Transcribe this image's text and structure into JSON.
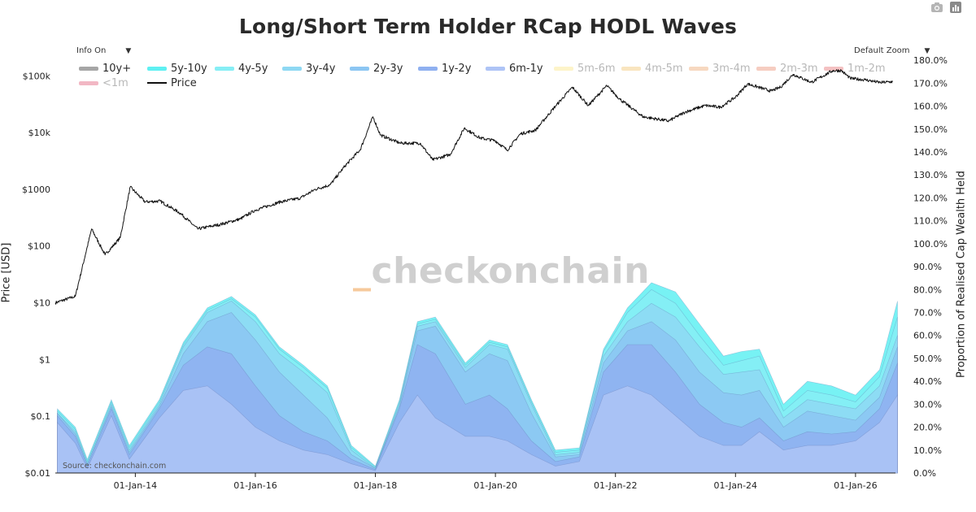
{
  "chart_data": {
    "type": "area",
    "title": "Long/Short Term Holder RCap HODL Waves",
    "xlabel": "",
    "ylabel_left": "Price [USD]",
    "ylabel_right": "Proportion of Realised Cap Wealth Held",
    "x_ticks": [
      "01-Jan-14",
      "01-Jan-16",
      "01-Jan-18",
      "01-Jan-20",
      "01-Jan-22",
      "01-Jan-24",
      "01-Jan-26"
    ],
    "x_range": [
      "2012-09-01",
      "2026-09-01"
    ],
    "y_left": {
      "scale": "log",
      "range": [
        0.01,
        300000
      ],
      "ticks": [
        "$0.01",
        "$0.1",
        "$1",
        "$10",
        "$100",
        "$1000",
        "$10k",
        "$100k"
      ]
    },
    "y_right": {
      "range": [
        0,
        185
      ],
      "ticks": [
        "0.0%",
        "10.0%",
        "20.0%",
        "30.0%",
        "40.0%",
        "50.0%",
        "60.0%",
        "70.0%",
        "80.0%",
        "90.0%",
        "100.0%",
        "110.0%",
        "120.0%",
        "130.0%",
        "140.0%",
        "150.0%",
        "160.0%",
        "170.0%",
        "180.0%"
      ]
    },
    "legend": [
      {
        "name": "10y+",
        "color": "#a6a6a6",
        "visible": true
      },
      {
        "name": "5y-10y",
        "color": "#5ff0f2",
        "visible": true
      },
      {
        "name": "4y-5y",
        "color": "#86eef5",
        "visible": true
      },
      {
        "name": "3y-4y",
        "color": "#8ed8f3",
        "visible": true
      },
      {
        "name": "2y-3y",
        "color": "#8cc6f2",
        "visible": true
      },
      {
        "name": "1y-2y",
        "color": "#8fb0f0",
        "visible": true
      },
      {
        "name": "6m-1y",
        "color": "#aec4f6",
        "visible": true
      },
      {
        "name": "5m-6m",
        "color": "#fdf4c9",
        "visible": false
      },
      {
        "name": "4m-5m",
        "color": "#f9e5bf",
        "visible": false
      },
      {
        "name": "3m-4m",
        "color": "#f7d8c0",
        "visible": false
      },
      {
        "name": "2m-3m",
        "color": "#f6cdc1",
        "visible": false
      },
      {
        "name": "1m-2m",
        "color": "#f4c1c2",
        "visible": false
      },
      {
        "name": "<1m",
        "color": "#f2b7c4",
        "visible": false
      },
      {
        "name": "Price",
        "color": "#111111",
        "visible": true
      }
    ],
    "series": [
      {
        "name": "Price",
        "axis": "left",
        "x": [
          "2012-09-01",
          "2013-01-01",
          "2013-04-10",
          "2013-07-01",
          "2013-10-01",
          "2013-12-01",
          "2014-03-01",
          "2014-06-01",
          "2014-10-01",
          "2015-01-15",
          "2015-06-01",
          "2015-10-01",
          "2016-01-01",
          "2016-06-01",
          "2016-10-01",
          "2017-01-01",
          "2017-04-01",
          "2017-07-01",
          "2017-10-01",
          "2017-12-17",
          "2018-02-01",
          "2018-06-01",
          "2018-10-01",
          "2018-12-15",
          "2019-04-01",
          "2019-06-26",
          "2019-10-01",
          "2019-12-31",
          "2020-03-13",
          "2020-06-01",
          "2020-09-01",
          "2020-12-31",
          "2021-04-14",
          "2021-07-20",
          "2021-11-09",
          "2022-01-31",
          "2022-06-18",
          "2022-11-21",
          "2023-03-01",
          "2023-07-01",
          "2023-10-01",
          "2024-01-01",
          "2024-03-14",
          "2024-08-05",
          "2024-10-01",
          "2024-12-17",
          "2025-04-08",
          "2025-08-14",
          "2025-10-06",
          "2025-12-01",
          "2026-03-01",
          "2026-06-01",
          "2026-08-15"
        ],
        "values": [
          10,
          13,
          200,
          70,
          140,
          1100,
          600,
          620,
          380,
          200,
          240,
          300,
          430,
          600,
          700,
          1000,
          1200,
          2600,
          5000,
          19000,
          9000,
          6500,
          6500,
          3300,
          4100,
          12000,
          8000,
          7200,
          4900,
          9500,
          11000,
          29000,
          63000,
          30000,
          67000,
          38000,
          19000,
          16000,
          23000,
          30000,
          28000,
          42000,
          72000,
          54000,
          63000,
          106000,
          77000,
          123000,
          124000,
          90000,
          85000,
          76000,
          79000
        ]
      },
      {
        "name": "5y-10y",
        "axis": "right",
        "x": [
          2012.7,
          2013.0,
          2013.2,
          2013.6,
          2013.9,
          2014.4,
          2014.8,
          2015.2,
          2015.6,
          2016.0,
          2016.4,
          2016.8,
          2017.2,
          2017.6,
          2018.0,
          2018.4,
          2018.7,
          2019.0,
          2019.5,
          2019.9,
          2020.2,
          2020.6,
          2021.0,
          2021.4,
          2021.8,
          2022.2,
          2022.6,
          2023.0,
          2023.4,
          2023.8,
          2024.1,
          2024.4,
          2024.8,
          2025.2,
          2025.6,
          2026.0,
          2026.4,
          2026.7
        ],
        "values": [
          28,
          20,
          6,
          32,
          12,
          32,
          57,
          72,
          77,
          69,
          55,
          47,
          38,
          12,
          3,
          32,
          66,
          68,
          48,
          58,
          56,
          32,
          10,
          11,
          54,
          72,
          83,
          79,
          65,
          51,
          53,
          54,
          30,
          40,
          38,
          34,
          45,
          75
        ]
      },
      {
        "name": "4y-5y",
        "axis": "right",
        "x": [
          2012.7,
          2013.0,
          2013.2,
          2013.6,
          2013.9,
          2014.4,
          2014.8,
          2015.2,
          2015.6,
          2016.0,
          2016.4,
          2016.8,
          2017.2,
          2017.6,
          2018.0,
          2018.4,
          2018.7,
          2019.0,
          2019.5,
          2019.9,
          2020.2,
          2020.6,
          2021.0,
          2021.4,
          2021.8,
          2022.2,
          2022.6,
          2023.0,
          2023.4,
          2023.8,
          2024.1,
          2024.4,
          2024.8,
          2025.2,
          2025.6,
          2026.0,
          2026.4,
          2026.7
        ],
        "values": [
          27,
          19,
          5,
          31,
          11,
          31,
          56,
          71,
          76,
          68,
          54,
          46,
          37,
          11,
          2.5,
          31,
          65,
          67,
          47,
          57,
          55,
          31,
          9,
          10,
          53,
          70,
          80,
          74,
          60,
          47,
          49,
          51,
          27,
          36,
          34,
          31,
          42,
          68
        ]
      },
      {
        "name": "3y-4y",
        "axis": "right",
        "x": [
          2012.7,
          2013.0,
          2013.2,
          2013.6,
          2013.9,
          2014.4,
          2014.8,
          2015.2,
          2015.6,
          2016.0,
          2016.4,
          2016.8,
          2017.2,
          2017.6,
          2018.0,
          2018.4,
          2018.7,
          2019.0,
          2019.5,
          2019.9,
          2020.2,
          2020.6,
          2021.0,
          2021.4,
          2021.8,
          2022.2,
          2022.6,
          2023.0,
          2023.4,
          2023.8,
          2024.1,
          2024.4,
          2024.8,
          2025.2,
          2025.6,
          2026.0,
          2026.4,
          2026.7
        ],
        "values": [
          26,
          18,
          4,
          30,
          10,
          30,
          55,
          70,
          75,
          66,
          52,
          44,
          35,
          10,
          2,
          30,
          64,
          66,
          46,
          56,
          54,
          30,
          8,
          9,
          51,
          66,
          74,
          68,
          55,
          43,
          44,
          45,
          24,
          32,
          30,
          28,
          38,
          60
        ]
      },
      {
        "name": "2y-3y",
        "axis": "right",
        "x": [
          2012.7,
          2013.0,
          2013.2,
          2013.6,
          2013.9,
          2014.4,
          2014.8,
          2015.2,
          2015.6,
          2016.0,
          2016.4,
          2016.8,
          2017.2,
          2017.6,
          2018.0,
          2018.4,
          2018.7,
          2019.0,
          2019.5,
          2019.9,
          2020.2,
          2020.6,
          2021.0,
          2021.4,
          2021.8,
          2022.2,
          2022.6,
          2023.0,
          2023.4,
          2023.8,
          2024.1,
          2024.4,
          2024.8,
          2025.2,
          2025.6,
          2026.0,
          2026.4,
          2026.7
        ],
        "values": [
          26,
          17,
          4,
          29,
          9,
          29,
          52,
          66,
          70,
          58,
          44,
          34,
          24,
          8,
          2,
          29,
          62,
          64,
          44,
          52,
          49,
          26,
          7,
          8,
          48,
          62,
          66,
          58,
          44,
          35,
          34,
          36,
          20,
          27,
          25,
          23,
          33,
          55
        ]
      },
      {
        "name": "1y-2y",
        "axis": "right",
        "x": [
          2012.7,
          2013.0,
          2013.2,
          2013.6,
          2013.9,
          2014.4,
          2014.8,
          2015.2,
          2015.6,
          2016.0,
          2016.4,
          2016.8,
          2017.2,
          2017.6,
          2018.0,
          2018.4,
          2018.7,
          2019.0,
          2019.5,
          2019.9,
          2020.2,
          2020.6,
          2021.0,
          2021.4,
          2021.8,
          2022.2,
          2022.6,
          2023.0,
          2023.4,
          2023.8,
          2024.1,
          2024.4,
          2024.8,
          2025.2,
          2025.6,
          2026.0,
          2026.4,
          2026.7
        ],
        "values": [
          25,
          16,
          3,
          28,
          8,
          28,
          47,
          55,
          52,
          38,
          25,
          18,
          14,
          6,
          1.5,
          28,
          56,
          52,
          30,
          34,
          28,
          14,
          5,
          7,
          44,
          56,
          56,
          44,
          30,
          22,
          20,
          24,
          14,
          18,
          17,
          18,
          28,
          48
        ]
      },
      {
        "name": "6m-1y",
        "axis": "right",
        "x": [
          2012.7,
          2013.0,
          2013.2,
          2013.6,
          2013.9,
          2014.4,
          2014.8,
          2015.2,
          2015.6,
          2016.0,
          2016.4,
          2016.8,
          2017.2,
          2017.6,
          2018.0,
          2018.4,
          2018.7,
          2019.0,
          2019.5,
          2019.9,
          2020.2,
          2020.6,
          2021.0,
          2021.4,
          2021.8,
          2022.2,
          2022.6,
          2023.0,
          2023.4,
          2023.8,
          2024.1,
          2024.4,
          2024.8,
          2025.2,
          2025.6,
          2026.0,
          2026.4,
          2026.7
        ],
        "values": [
          22,
          13,
          2,
          25,
          6,
          24,
          36,
          38,
          30,
          20,
          14,
          10,
          8,
          4,
          1,
          22,
          34,
          24,
          16,
          16,
          14,
          8,
          3,
          5,
          34,
          38,
          34,
          25,
          16,
          12,
          12,
          18,
          10,
          12,
          12,
          14,
          22,
          34
        ]
      }
    ]
  },
  "controls": {
    "info_toggle": "Info On",
    "zoom_toggle": "Default Zoom",
    "caret_icon": "▼",
    "camera_icon": "camera-icon",
    "logo_icon": "plotly-logo-icon"
  },
  "watermark": {
    "prefix": "_",
    "text": "checkonchain"
  },
  "source_note": "Source: checkonchain.com"
}
